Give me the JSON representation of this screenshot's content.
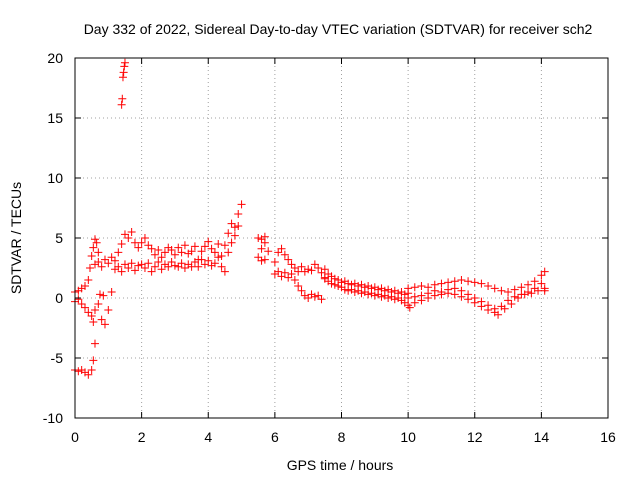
{
  "chart_data": {
    "type": "scatter",
    "title": "Day 332 of 2022, Sidereal Day-to-day VTEC variation (SDTVAR) for receiver sch2",
    "xlabel": "GPS time / hours",
    "ylabel": "SDTVAR / TECUs",
    "xlim": [
      0,
      16
    ],
    "ylim": [
      -10,
      20
    ],
    "xticks": [
      "0",
      "2",
      "4",
      "6",
      "8",
      "10",
      "12",
      "14",
      "16"
    ],
    "yticks": [
      "-10",
      "-5",
      "0",
      "5",
      "10",
      "15",
      "20"
    ],
    "grid": true,
    "marker": "+",
    "series": [
      {
        "name": "sch2",
        "color": "#ff0000",
        "points": [
          [
            0.0,
            -6.0
          ],
          [
            0.1,
            -6.1
          ],
          [
            0.2,
            -6.0
          ],
          [
            0.3,
            -6.2
          ],
          [
            0.4,
            -6.4
          ],
          [
            0.5,
            -6.0
          ],
          [
            0.55,
            -5.2
          ],
          [
            0.6,
            -3.8
          ],
          [
            0.0,
            0.5
          ],
          [
            0.1,
            0.6
          ],
          [
            0.2,
            0.8
          ],
          [
            0.3,
            1.0
          ],
          [
            0.4,
            1.5
          ],
          [
            0.45,
            2.5
          ],
          [
            0.5,
            3.5
          ],
          [
            0.55,
            4.2
          ],
          [
            0.6,
            4.9
          ],
          [
            0.65,
            4.6
          ],
          [
            0.7,
            3.8
          ],
          [
            0.0,
            -0.3
          ],
          [
            0.1,
            -0.1
          ],
          [
            0.2,
            -0.5
          ],
          [
            0.3,
            -0.8
          ],
          [
            0.4,
            -1.2
          ],
          [
            0.5,
            -1.5
          ],
          [
            0.55,
            -2.0
          ],
          [
            0.6,
            -1.0
          ],
          [
            0.7,
            -0.5
          ],
          [
            0.8,
            -1.8
          ],
          [
            0.9,
            -2.2
          ],
          [
            1.0,
            -1.0
          ],
          [
            1.1,
            0.5
          ],
          [
            0.75,
            0.3
          ],
          [
            0.85,
            0.2
          ],
          [
            0.6,
            2.8
          ],
          [
            0.7,
            3.0
          ],
          [
            0.8,
            2.6
          ],
          [
            0.9,
            3.2
          ],
          [
            1.0,
            2.9
          ],
          [
            1.1,
            3.4
          ],
          [
            1.2,
            3.1
          ],
          [
            1.3,
            3.8
          ],
          [
            1.4,
            4.5
          ],
          [
            1.5,
            5.3
          ],
          [
            1.6,
            5.0
          ],
          [
            1.7,
            5.5
          ],
          [
            1.8,
            4.6
          ],
          [
            1.9,
            4.2
          ],
          [
            2.0,
            4.6
          ],
          [
            2.1,
            5.0
          ],
          [
            2.2,
            4.4
          ],
          [
            2.3,
            4.1
          ],
          [
            2.4,
            3.6
          ],
          [
            2.5,
            4.0
          ],
          [
            2.6,
            3.4
          ],
          [
            2.7,
            3.8
          ],
          [
            2.8,
            4.2
          ],
          [
            2.9,
            4.0
          ],
          [
            1.2,
            2.4
          ],
          [
            1.3,
            2.6
          ],
          [
            1.4,
            2.2
          ],
          [
            1.5,
            2.8
          ],
          [
            1.6,
            2.5
          ],
          [
            1.7,
            2.9
          ],
          [
            1.8,
            2.3
          ],
          [
            1.9,
            2.7
          ],
          [
            2.0,
            2.8
          ],
          [
            2.1,
            2.5
          ],
          [
            2.2,
            2.9
          ],
          [
            2.3,
            2.2
          ],
          [
            2.4,
            2.6
          ],
          [
            2.5,
            3.0
          ],
          [
            2.6,
            2.4
          ],
          [
            2.7,
            2.8
          ],
          [
            2.8,
            2.6
          ],
          [
            2.9,
            3.0
          ],
          [
            3.0,
            2.7
          ],
          [
            1.4,
            16.1
          ],
          [
            1.42,
            16.6
          ],
          [
            1.44,
            18.4
          ],
          [
            1.46,
            18.8
          ],
          [
            1.48,
            19.3
          ],
          [
            1.5,
            19.6
          ],
          [
            3.0,
            3.6
          ],
          [
            3.1,
            4.2
          ],
          [
            3.2,
            3.8
          ],
          [
            3.3,
            4.4
          ],
          [
            3.4,
            3.7
          ],
          [
            3.5,
            3.9
          ],
          [
            3.6,
            4.3
          ],
          [
            3.7,
            3.2
          ],
          [
            3.8,
            3.9
          ],
          [
            3.9,
            4.3
          ],
          [
            4.0,
            4.7
          ],
          [
            4.1,
            4.1
          ],
          [
            4.2,
            3.8
          ],
          [
            4.3,
            4.5
          ],
          [
            4.4,
            3.5
          ],
          [
            4.5,
            4.4
          ],
          [
            4.6,
            5.4
          ],
          [
            4.7,
            6.2
          ],
          [
            4.8,
            5.9
          ],
          [
            4.9,
            7.0
          ],
          [
            5.0,
            7.8
          ],
          [
            3.1,
            2.6
          ],
          [
            3.2,
            2.9
          ],
          [
            3.3,
            2.5
          ],
          [
            3.4,
            2.8
          ],
          [
            3.5,
            2.6
          ],
          [
            3.6,
            3.0
          ],
          [
            3.7,
            2.6
          ],
          [
            3.8,
            3.2
          ],
          [
            3.9,
            2.8
          ],
          [
            4.0,
            3.1
          ],
          [
            4.1,
            2.7
          ],
          [
            4.2,
            2.9
          ],
          [
            4.3,
            3.4
          ],
          [
            4.4,
            2.6
          ],
          [
            4.5,
            2.2
          ],
          [
            4.6,
            3.8
          ],
          [
            4.7,
            4.6
          ],
          [
            4.8,
            5.2
          ],
          [
            4.9,
            6.0
          ],
          [
            5.5,
            3.4
          ],
          [
            5.6,
            4.1
          ],
          [
            5.7,
            4.6
          ],
          [
            5.8,
            3.9
          ],
          [
            5.5,
            5.0
          ],
          [
            5.6,
            4.9
          ],
          [
            5.7,
            5.1
          ],
          [
            5.6,
            3.1
          ],
          [
            5.7,
            3.2
          ],
          [
            6.0,
            3.0
          ],
          [
            6.1,
            3.8
          ],
          [
            6.2,
            4.1
          ],
          [
            6.3,
            3.6
          ],
          [
            6.4,
            3.2
          ],
          [
            6.5,
            2.8
          ],
          [
            6.6,
            2.5
          ],
          [
            6.7,
            2.2
          ],
          [
            6.8,
            2.6
          ],
          [
            6.9,
            2.2
          ],
          [
            7.0,
            2.4
          ],
          [
            7.1,
            2.3
          ],
          [
            7.2,
            2.8
          ],
          [
            7.3,
            2.5
          ],
          [
            7.4,
            2.1
          ],
          [
            7.5,
            1.7
          ],
          [
            6.0,
            2.0
          ],
          [
            6.1,
            2.2
          ],
          [
            6.2,
            1.8
          ],
          [
            6.3,
            2.1
          ],
          [
            6.4,
            1.7
          ],
          [
            6.5,
            2.0
          ],
          [
            6.6,
            1.5
          ],
          [
            6.7,
            1.0
          ],
          [
            6.8,
            0.6
          ],
          [
            6.9,
            0.2
          ],
          [
            7.0,
            0.0
          ],
          [
            7.1,
            0.3
          ],
          [
            7.2,
            0.1
          ],
          [
            7.3,
            0.2
          ],
          [
            7.4,
            -0.1
          ],
          [
            7.5,
            2.4
          ],
          [
            7.6,
            2.0
          ],
          [
            7.7,
            1.8
          ],
          [
            7.8,
            1.6
          ],
          [
            7.9,
            1.5
          ],
          [
            8.0,
            1.3
          ],
          [
            8.1,
            1.4
          ],
          [
            8.2,
            1.2
          ],
          [
            8.3,
            1.1
          ],
          [
            8.4,
            1.2
          ],
          [
            8.5,
            1.0
          ],
          [
            8.6,
            1.1
          ],
          [
            8.7,
            0.9
          ],
          [
            8.8,
            1.0
          ],
          [
            8.9,
            0.8
          ],
          [
            9.0,
            0.9
          ],
          [
            9.1,
            0.7
          ],
          [
            9.2,
            0.8
          ],
          [
            9.3,
            0.6
          ],
          [
            9.4,
            0.7
          ],
          [
            9.5,
            0.5
          ],
          [
            9.6,
            0.6
          ],
          [
            9.7,
            0.4
          ],
          [
            9.8,
            0.5
          ],
          [
            9.9,
            0.3
          ],
          [
            10.0,
            0.4
          ],
          [
            7.5,
            1.6
          ],
          [
            7.6,
            1.4
          ],
          [
            7.7,
            1.2
          ],
          [
            7.8,
            1.1
          ],
          [
            7.9,
            1.0
          ],
          [
            8.0,
            0.9
          ],
          [
            8.1,
            0.7
          ],
          [
            8.2,
            0.6
          ],
          [
            8.3,
            0.7
          ],
          [
            8.4,
            0.5
          ],
          [
            8.5,
            0.6
          ],
          [
            8.6,
            0.4
          ],
          [
            8.7,
            0.5
          ],
          [
            8.8,
            0.3
          ],
          [
            8.9,
            0.4
          ],
          [
            9.0,
            0.2
          ],
          [
            9.1,
            0.3
          ],
          [
            9.2,
            0.1
          ],
          [
            9.3,
            0.2
          ],
          [
            9.4,
            0.0
          ],
          [
            9.5,
            0.1
          ],
          [
            9.6,
            -0.1
          ],
          [
            9.7,
            0.0
          ],
          [
            9.8,
            -0.2
          ],
          [
            9.9,
            -0.4
          ],
          [
            10.0,
            -0.6
          ],
          [
            10.05,
            -0.8
          ],
          [
            10.0,
            0.8
          ],
          [
            10.2,
            0.9
          ],
          [
            10.4,
            1.0
          ],
          [
            10.6,
            0.9
          ],
          [
            10.8,
            1.1
          ],
          [
            11.0,
            1.2
          ],
          [
            11.2,
            1.3
          ],
          [
            11.4,
            1.4
          ],
          [
            11.6,
            1.5
          ],
          [
            11.8,
            1.4
          ],
          [
            12.0,
            1.3
          ],
          [
            12.2,
            1.2
          ],
          [
            12.4,
            1.0
          ],
          [
            12.6,
            0.8
          ],
          [
            12.8,
            0.6
          ],
          [
            13.0,
            0.5
          ],
          [
            13.2,
            0.7
          ],
          [
            13.4,
            0.9
          ],
          [
            13.6,
            1.1
          ],
          [
            13.8,
            1.4
          ],
          [
            14.0,
            1.9
          ],
          [
            14.1,
            2.2
          ],
          [
            10.0,
            0.0
          ],
          [
            10.2,
            0.1
          ],
          [
            10.4,
            0.2
          ],
          [
            10.6,
            0.4
          ],
          [
            10.8,
            0.6
          ],
          [
            11.0,
            0.5
          ],
          [
            11.2,
            0.7
          ],
          [
            11.4,
            0.8
          ],
          [
            11.6,
            0.6
          ],
          [
            11.8,
            0.3
          ],
          [
            12.0,
            0.0
          ],
          [
            12.2,
            -0.3
          ],
          [
            12.4,
            -0.6
          ],
          [
            12.6,
            -0.9
          ],
          [
            12.8,
            -0.7
          ],
          [
            13.0,
            -0.2
          ],
          [
            13.2,
            0.1
          ],
          [
            13.4,
            0.3
          ],
          [
            13.6,
            0.5
          ],
          [
            13.8,
            0.8
          ],
          [
            14.0,
            1.2
          ],
          [
            14.1,
            0.8
          ],
          [
            10.2,
            -0.4
          ],
          [
            10.4,
            -0.2
          ],
          [
            10.6,
            0.0
          ],
          [
            10.8,
            0.2
          ],
          [
            11.0,
            0.3
          ],
          [
            11.2,
            0.4
          ],
          [
            11.4,
            0.3
          ],
          [
            11.6,
            0.1
          ],
          [
            11.8,
            -0.1
          ],
          [
            12.0,
            -0.4
          ],
          [
            12.2,
            -0.7
          ],
          [
            12.4,
            -1.0
          ],
          [
            12.6,
            -1.2
          ],
          [
            12.7,
            -1.4
          ],
          [
            12.9,
            -0.9
          ],
          [
            13.1,
            -0.5
          ],
          [
            13.3,
            0.0
          ],
          [
            13.5,
            0.3
          ],
          [
            13.7,
            0.4
          ],
          [
            13.9,
            0.6
          ],
          [
            14.1,
            0.6
          ]
        ]
      }
    ]
  }
}
